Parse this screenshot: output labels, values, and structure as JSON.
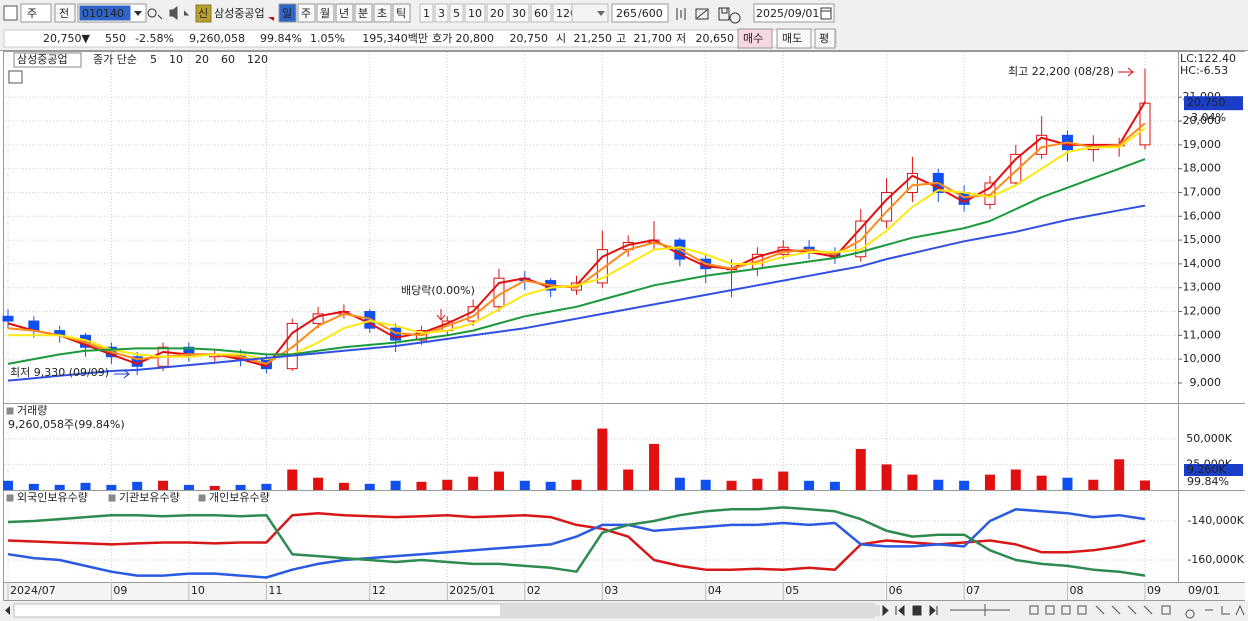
{
  "toolbar": {
    "period": "주",
    "prev": "전",
    "code": "010140",
    "badge": "신",
    "name": "삼성중공업",
    "intervals": [
      "일",
      "주",
      "월",
      "년",
      "분",
      "초",
      "틱"
    ],
    "counts": [
      "1",
      "3",
      "5",
      "10",
      "20",
      "30",
      "60",
      "120"
    ],
    "count": "265",
    "max": "/600",
    "date": "2025/09/01"
  },
  "quote": {
    "price": "20,750▼",
    "change": "550",
    "rate": "-2.58%",
    "volume": "9,260,058",
    "vol_rate": "99.84%",
    "turnover": "1.05%",
    "amount": "195,340백만",
    "ask_label": "호가",
    "ask": "20,800",
    "bid": "20,750",
    "open_label": "시",
    "open": "21,250",
    "high_label": "고",
    "high": "21,700",
    "low_label": "저",
    "low": "20,650",
    "buy": "매수",
    "sell": "매도",
    "avg": "평"
  },
  "chart_data": [
    {
      "type": "candlestick",
      "title": "삼성중공업",
      "legend_prefix": "종가 단순",
      "up_color": "#e01010",
      "down_color": "#1050f0",
      "open": [
        11800,
        11600,
        11200,
        11000,
        10500,
        10100,
        9700,
        10500,
        10100,
        10200,
        10000,
        9600,
        11500,
        11900,
        12000,
        11300,
        10800,
        11200,
        11600,
        12200,
        13400,
        13300,
        12900,
        13200,
        14600,
        14900,
        15000,
        14200,
        13800,
        13800,
        14400,
        14700,
        14500,
        14300,
        15800,
        17000,
        17800,
        17000,
        16500,
        17400,
        18600,
        19400,
        18800,
        19000,
        19000
      ],
      "high": [
        12100,
        11800,
        11400,
        11100,
        10700,
        10300,
        10700,
        10700,
        10400,
        10400,
        10200,
        11700,
        12200,
        12300,
        12100,
        11500,
        11400,
        11800,
        12500,
        13800,
        13700,
        13400,
        13500,
        15400,
        15200,
        15800,
        15100,
        14400,
        14200,
        14700,
        15000,
        15000,
        14700,
        16300,
        17600,
        18500,
        18000,
        17300,
        17700,
        19000,
        20200,
        19600,
        19400,
        19300,
        22200
      ],
      "low": [
        11300,
        10900,
        10700,
        10100,
        9800,
        9330,
        9500,
        9900,
        9900,
        9700,
        9400,
        9500,
        11300,
        11700,
        11100,
        10300,
        10600,
        11000,
        11400,
        12000,
        12900,
        12600,
        12700,
        13000,
        14300,
        14600,
        13900,
        13200,
        12600,
        13500,
        14200,
        14200,
        14000,
        14100,
        15500,
        16600,
        16600,
        16200,
        16300,
        17300,
        18400,
        18300,
        18300,
        18500,
        18800
      ],
      "close": [
        11600,
        11200,
        11000,
        10500,
        10100,
        9700,
        10500,
        10100,
        10200,
        10000,
        9600,
        11500,
        11900,
        12000,
        11300,
        10800,
        11200,
        11600,
        12200,
        13400,
        13300,
        12900,
        13200,
        14600,
        14900,
        15000,
        14200,
        13800,
        13800,
        14400,
        14700,
        14500,
        14300,
        15800,
        17000,
        17800,
        17000,
        16500,
        17400,
        18600,
        19400,
        18800,
        19000,
        19000,
        20750
      ],
      "series": [
        {
          "name": "5",
          "color": "#e01010",
          "values": [
            11500,
            11200,
            11000,
            10600,
            10200,
            9800,
            10300,
            10200,
            10200,
            10000,
            9700,
            11100,
            11800,
            12000,
            11500,
            10900,
            11100,
            11500,
            12000,
            13200,
            13400,
            13000,
            13100,
            14300,
            14800,
            15000,
            14400,
            13900,
            13800,
            14300,
            14600,
            14500,
            14300,
            15500,
            16700,
            17700,
            17200,
            16600,
            17200,
            18400,
            19300,
            19000,
            19000,
            19000,
            20800
          ]
        },
        {
          "name": "10",
          "color": "#ff8a1a",
          "values": [
            11300,
            11200,
            11000,
            10700,
            10300,
            10000,
            10100,
            10200,
            10200,
            10100,
            9800,
            10500,
            11400,
            11900,
            11700,
            11100,
            11000,
            11400,
            11800,
            12700,
            13300,
            13100,
            13000,
            13800,
            14600,
            14900,
            14600,
            14000,
            13800,
            14100,
            14500,
            14600,
            14400,
            15000,
            16200,
            17300,
            17400,
            16800,
            16900,
            17900,
            18900,
            19100,
            18900,
            19000,
            19900
          ]
        },
        {
          "name": "20",
          "color": "#ffe810",
          "values": [
            11000,
            11000,
            11000,
            10800,
            10400,
            10200,
            10100,
            10100,
            10200,
            10200,
            10000,
            10200,
            10700,
            11300,
            11600,
            11400,
            11100,
            11200,
            11500,
            12100,
            12700,
            13000,
            13100,
            13400,
            14000,
            14600,
            14700,
            14400,
            14000,
            14000,
            14300,
            14500,
            14500,
            14600,
            15400,
            16400,
            17100,
            17000,
            16800,
            17300,
            18000,
            18700,
            18900,
            18900,
            19700
          ]
        },
        {
          "name": "60",
          "color": "#1a9a3a",
          "values": [
            9800,
            10000,
            10200,
            10350,
            10400,
            10450,
            10450,
            10450,
            10400,
            10300,
            10200,
            10200,
            10350,
            10500,
            10600,
            10700,
            10850,
            11000,
            11200,
            11500,
            11800,
            12000,
            12200,
            12500,
            12800,
            13100,
            13300,
            13500,
            13650,
            13800,
            13950,
            14100,
            14250,
            14500,
            14800,
            15100,
            15300,
            15500,
            15800,
            16300,
            16800,
            17200,
            17600,
            18000,
            18400
          ]
        },
        {
          "name": "120",
          "color": "#2f50e0",
          "values": [
            9100,
            9200,
            9300,
            9400,
            9500,
            9550,
            9650,
            9750,
            9850,
            9950,
            10050,
            10150,
            10250,
            10350,
            10450,
            10550,
            10700,
            10850,
            11000,
            11150,
            11300,
            11500,
            11700,
            11900,
            12100,
            12300,
            12500,
            12700,
            12900,
            13100,
            13300,
            13500,
            13700,
            13900,
            14200,
            14450,
            14700,
            14950,
            15150,
            15350,
            15600,
            15850,
            16050,
            16250,
            16450
          ]
        }
      ],
      "ylim": [
        8200,
        22900
      ],
      "yticks": [
        {
          "value": 9000,
          "label": "9,000"
        },
        {
          "value": 10000,
          "label": "10,000"
        },
        {
          "value": 11000,
          "label": "11,000"
        },
        {
          "value": 12000,
          "label": "12,000"
        },
        {
          "value": 13000,
          "label": "13,000"
        },
        {
          "value": 14000,
          "label": "14,000"
        },
        {
          "value": 15000,
          "label": "15,000"
        },
        {
          "value": 16000,
          "label": "16,000"
        },
        {
          "value": 17000,
          "label": "17,000"
        },
        {
          "value": 18000,
          "label": "18,000"
        },
        {
          "value": 19000,
          "label": "19,000"
        },
        {
          "value": 20000,
          "label": "20,000"
        },
        {
          "value": 21000,
          "label": "21,000"
        }
      ],
      "lc": "LC:122.40",
      "hc": "HC:-6.53",
      "last": {
        "value": 20750,
        "label": "20,750"
      },
      "last_change": "-3.04%",
      "annotations": [
        "최고 22,200 (08/28)",
        "최저 9,330 (09/09)",
        "배당락(0.00%)"
      ]
    },
    {
      "type": "bar",
      "title": "거래량",
      "subtitle": "9,260,058주(99.84%)",
      "values": [
        9000,
        6000,
        5000,
        7000,
        5000,
        8000,
        9000,
        5000,
        4000,
        5000,
        6000,
        20000,
        12000,
        7000,
        6000,
        9000,
        8000,
        10000,
        13000,
        18000,
        9000,
        8000,
        10000,
        60000,
        20000,
        45000,
        12000,
        10000,
        9000,
        11000,
        18000,
        9000,
        8000,
        40000,
        25000,
        15000,
        10000,
        9000,
        15000,
        20000,
        14000,
        12000,
        10000,
        30000,
        9260
      ],
      "ylim": [
        0,
        83000
      ],
      "yticks": [
        {
          "value": 25000,
          "label": "25,000K"
        },
        {
          "value": 50000,
          "label": "50,000K"
        }
      ],
      "last_label": "9,260K",
      "last_pct": "99.84%"
    },
    {
      "type": "line",
      "categories": [
        "2024/07",
        null,
        null,
        null,
        "09",
        null,
        null,
        "10",
        null,
        null,
        "11",
        null,
        null,
        null,
        "12",
        null,
        null,
        "2025/01",
        null,
        null,
        "02",
        null,
        null,
        "03",
        null,
        null,
        null,
        "04",
        null,
        null,
        "05",
        null,
        null,
        null,
        "06",
        null,
        null,
        "07",
        null,
        null,
        null,
        "08",
        null,
        null,
        "09"
      ],
      "x_end": "09/01",
      "series": [
        {
          "name": "외국인보유수량",
          "color": "#d81818",
          "values": [
            -150000,
            -150500,
            -151000,
            -151500,
            -152000,
            -151500,
            -151000,
            -151000,
            -151500,
            -151000,
            -151000,
            -137000,
            -136000,
            -137000,
            -137500,
            -138000,
            -137500,
            -137000,
            -138000,
            -137500,
            -137000,
            -138000,
            -142000,
            -144000,
            -148000,
            -160000,
            -163000,
            -165000,
            -165000,
            -164500,
            -165000,
            -164000,
            -165000,
            -152000,
            -150000,
            -151000,
            -152000,
            -151000,
            -150000,
            -152000,
            -156000,
            -156000,
            -155000,
            -153000,
            -150000
          ]
        },
        {
          "name": "기관보유수량",
          "color": "#2a5ae0",
          "values": [
            -157000,
            -159000,
            -160000,
            -163000,
            -166000,
            -168000,
            -168000,
            -167000,
            -167000,
            -168000,
            -169000,
            -165000,
            -162000,
            -160000,
            -159000,
            -158000,
            -157000,
            -156000,
            -155000,
            -154000,
            -153000,
            -152000,
            -148000,
            -142000,
            -142000,
            -145000,
            -144000,
            -143000,
            -142000,
            -142000,
            -141000,
            -142000,
            -141000,
            -152000,
            -153000,
            -153000,
            -152000,
            -153000,
            -140000,
            -134000,
            -135000,
            -136000,
            -138000,
            -137000,
            -139000
          ]
        },
        {
          "name": "개인보유수량",
          "color": "#2e8b50",
          "values": [
            -140500,
            -140000,
            -139000,
            -138000,
            -137000,
            -137000,
            -137500,
            -137000,
            -137000,
            -137500,
            -137000,
            -157000,
            -158000,
            -159000,
            -160000,
            -161000,
            -160000,
            -161000,
            -162000,
            -162000,
            -163000,
            -164000,
            -166000,
            -146000,
            -142000,
            -140000,
            -137000,
            -135000,
            -134000,
            -134000,
            -133000,
            -134000,
            -135000,
            -139000,
            -145000,
            -148000,
            -147000,
            -147000,
            -155000,
            -160000,
            -162000,
            -163000,
            -165000,
            -166000,
            -168000
          ]
        }
      ],
      "ylim": [
        -171800,
        -125100
      ],
      "yticks": [
        {
          "value": -140000,
          "label": "-140,000K"
        },
        {
          "value": -160000,
          "label": "-160,000K"
        }
      ]
    }
  ]
}
